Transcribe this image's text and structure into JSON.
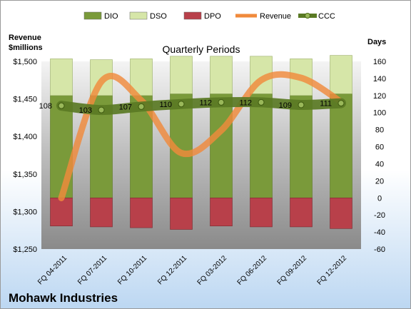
{
  "chart_data": {
    "type": "bar",
    "title": "Quarterly Periods",
    "company": "Mohawk Industries",
    "left_axis": {
      "label_line1": "Revenue",
      "label_line2": "$millions",
      "range": [
        1250,
        1500
      ],
      "ticks": [
        "$1,250",
        "$1,300",
        "$1,350",
        "$1,400",
        "$1,450",
        "$1,500"
      ]
    },
    "right_axis": {
      "label": "Days",
      "range": [
        -60,
        160
      ],
      "ticks": [
        "-60",
        "-40",
        "-20",
        "0",
        "20",
        "40",
        "60",
        "80",
        "100",
        "120",
        "140",
        "160"
      ]
    },
    "categories": [
      "FQ 04-2011",
      "FQ 07-2011",
      "FQ 10-2011",
      "FQ 12-2011",
      "FQ 03-2012",
      "FQ 06-2012",
      "FQ 09-2012",
      "FQ 12-2012"
    ],
    "legend": [
      {
        "name": "DIO",
        "color": "#7a9a3a",
        "kind": "bar"
      },
      {
        "name": "DSO",
        "color": "#d6e6a8",
        "kind": "bar"
      },
      {
        "name": "DPO",
        "color": "#b8404a",
        "kind": "bar"
      },
      {
        "name": "Revenue",
        "color": "#f08a3c",
        "kind": "line"
      },
      {
        "name": "CCC",
        "color": "#5a7a24",
        "kind": "line-marker"
      }
    ],
    "series": [
      {
        "name": "DIO",
        "axis": "days",
        "values": [
          120,
          120,
          120,
          122,
          122,
          122,
          120,
          122
        ]
      },
      {
        "name": "DSO",
        "axis": "days",
        "values": [
          43,
          42,
          43,
          44,
          44,
          44,
          43,
          45
        ]
      },
      {
        "name": "DPO",
        "axis": "days",
        "values": [
          -33,
          -34,
          -35,
          -37,
          -33,
          -34,
          -34,
          -36
        ]
      },
      {
        "name": "Revenue",
        "axis": "revenue",
        "values": [
          1318,
          1473,
          1448,
          1378,
          1408,
          1475,
          1478,
          1446
        ]
      },
      {
        "name": "CCC",
        "axis": "days",
        "values": [
          108,
          103,
          107,
          110,
          112,
          112,
          109,
          111
        ],
        "labels": [
          "108",
          "103",
          "107",
          "110",
          "112",
          "112",
          "109",
          "111"
        ]
      }
    ],
    "grid": false,
    "legend_position": "top"
  }
}
